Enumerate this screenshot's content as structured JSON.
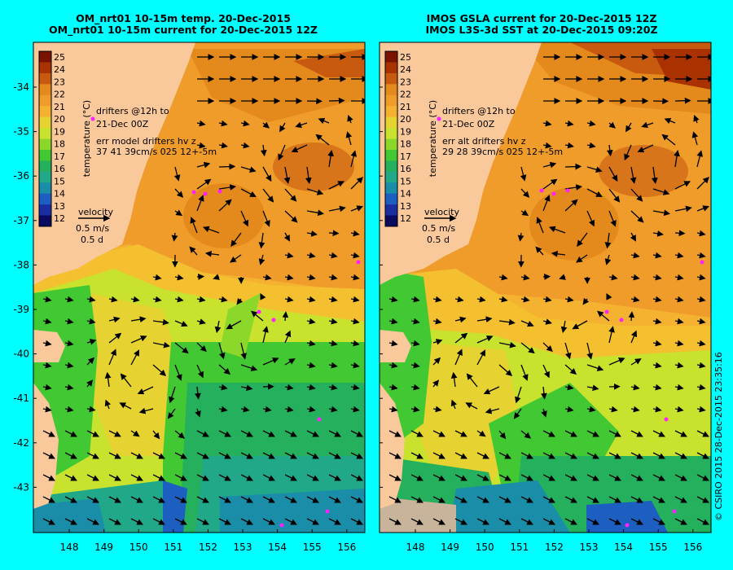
{
  "left_panel": {
    "title_line1": "OM_nrt01 10-15m temp. 20-Dec-2015",
    "title_line2": "OM_nrt01 10-15m current for 20-Dec-2015 12Z",
    "drifters_line1": "drifters @12h to",
    "drifters_line2": "21-Dec 00Z",
    "err_line1": "err model drifters hv z",
    "err_line2": "37 41 39cm/s 025 12+-5m"
  },
  "right_panel": {
    "title_line1": "IMOS GSLA current for 20-Dec-2015 12Z",
    "title_line2": "IMOS L3S-3d SST at 20-Dec-2015 09:20Z",
    "drifters_line1": "drifters @12h to",
    "drifters_line2": "21-Dec 00Z",
    "err_line1": "err alt drifters hv z",
    "err_line2": "29 28 39cm/s 025 12+-5m"
  },
  "colorbar": {
    "label": "temperature (°C)",
    "ticks": [
      "25",
      "24",
      "23",
      "22",
      "21",
      "20",
      "19",
      "18",
      "17",
      "16",
      "15",
      "14",
      "13",
      "12"
    ],
    "colors": [
      "#7a1200",
      "#a93200",
      "#c85a10",
      "#e48a1c",
      "#ef9c2a",
      "#f4b230",
      "#e6d230",
      "#c8e22e",
      "#8cd82a",
      "#42c832",
      "#24b05c",
      "#20a888",
      "#1a8ea8",
      "#1c5fc0",
      "#1a2ea0",
      "#0a0a60"
    ]
  },
  "velocity_legend": {
    "label": "velocity",
    "speed": "0.5 m/s",
    "duration": "0.5 d"
  },
  "map": {
    "lon_ticks": [
      "148",
      "149",
      "150",
      "151",
      "152",
      "153",
      "154",
      "155",
      "156"
    ],
    "lat_ticks": [
      "-34",
      "-35",
      "-36",
      "-37",
      "-38",
      "-39",
      "-40",
      "-41",
      "-42",
      "-43"
    ],
    "land_color": "#f9c89b",
    "frame_color": "#000000"
  },
  "credit": "© CSIRO 2015   28-Dec-2015 23:35:16"
}
